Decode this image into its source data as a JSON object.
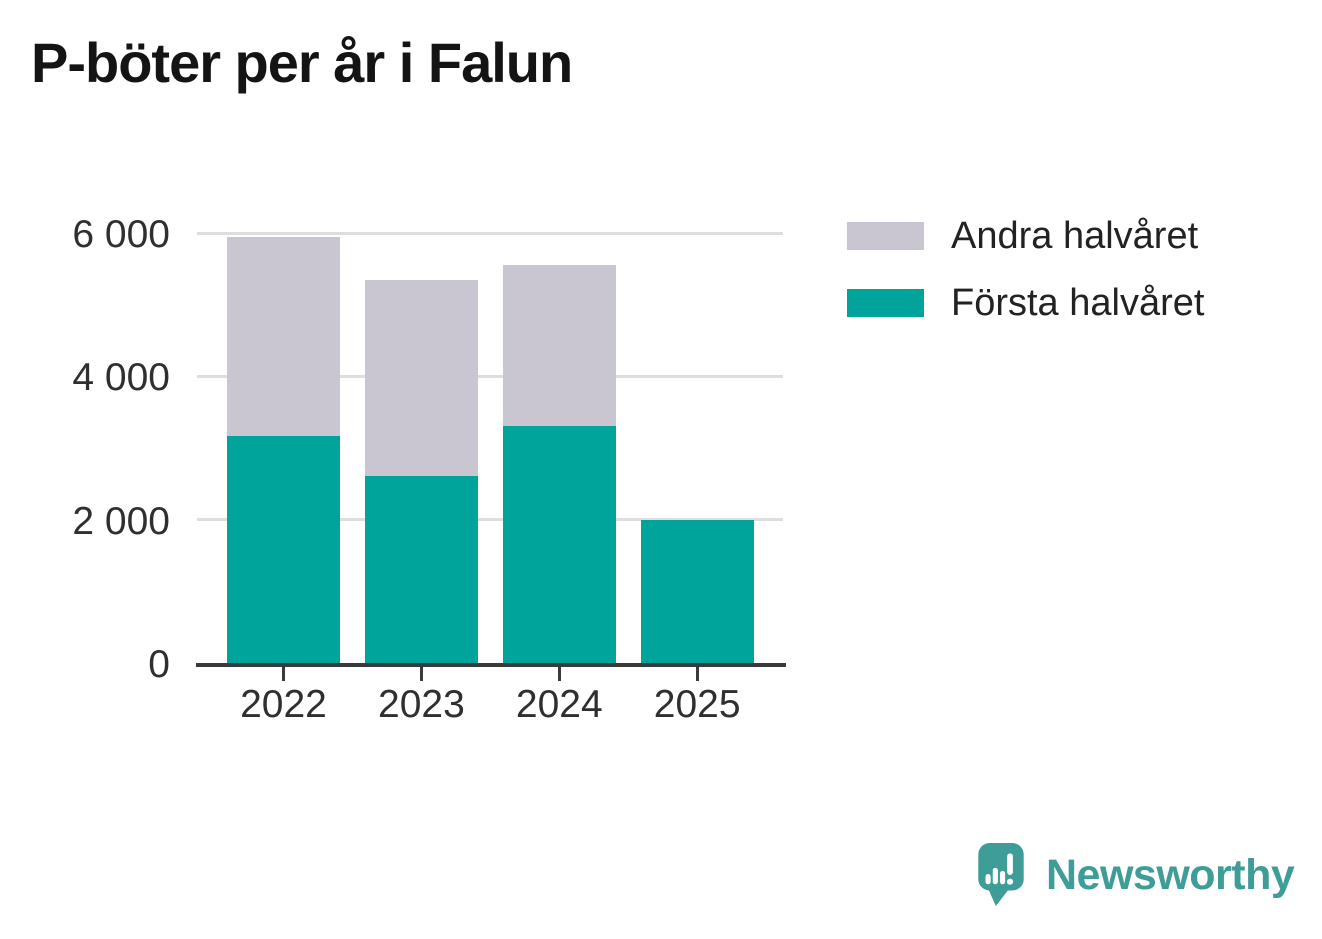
{
  "title": "P-böter per år i Falun",
  "chart_data": {
    "type": "bar",
    "stacked": true,
    "title": "P-böter per år i Falun",
    "categories": [
      "2022",
      "2023",
      "2024",
      "2025"
    ],
    "series": [
      {
        "name": "Första halvåret",
        "color": "#00A49B",
        "values": [
          3170,
          2610,
          3310,
          1990
        ]
      },
      {
        "name": "Andra halvåret",
        "color": "#C9C6D1",
        "values": [
          2770,
          2730,
          2250,
          0
        ]
      }
    ],
    "ylim": [
      0,
      6000
    ],
    "yticks": [
      0,
      2000,
      4000,
      6000
    ],
    "ytick_labels": [
      "0",
      "2 000",
      "4 000",
      "6 000"
    ],
    "grid": "horizontal",
    "legend_position": "top-right"
  },
  "legend": {
    "items": [
      {
        "label": "Andra halvåret",
        "color": "#C9C6D1"
      },
      {
        "label": "Första halvåret",
        "color": "#00A49B"
      }
    ]
  },
  "branding": {
    "logo_text": "Newsworthy",
    "logo_color": "#3E9D96",
    "logo_icon": "newsworthy-logo-icon"
  },
  "colors": {
    "axis": "#3a3a3c",
    "gridline": "#dedede",
    "text": "#2f2f2f",
    "title_text": "#141414"
  }
}
